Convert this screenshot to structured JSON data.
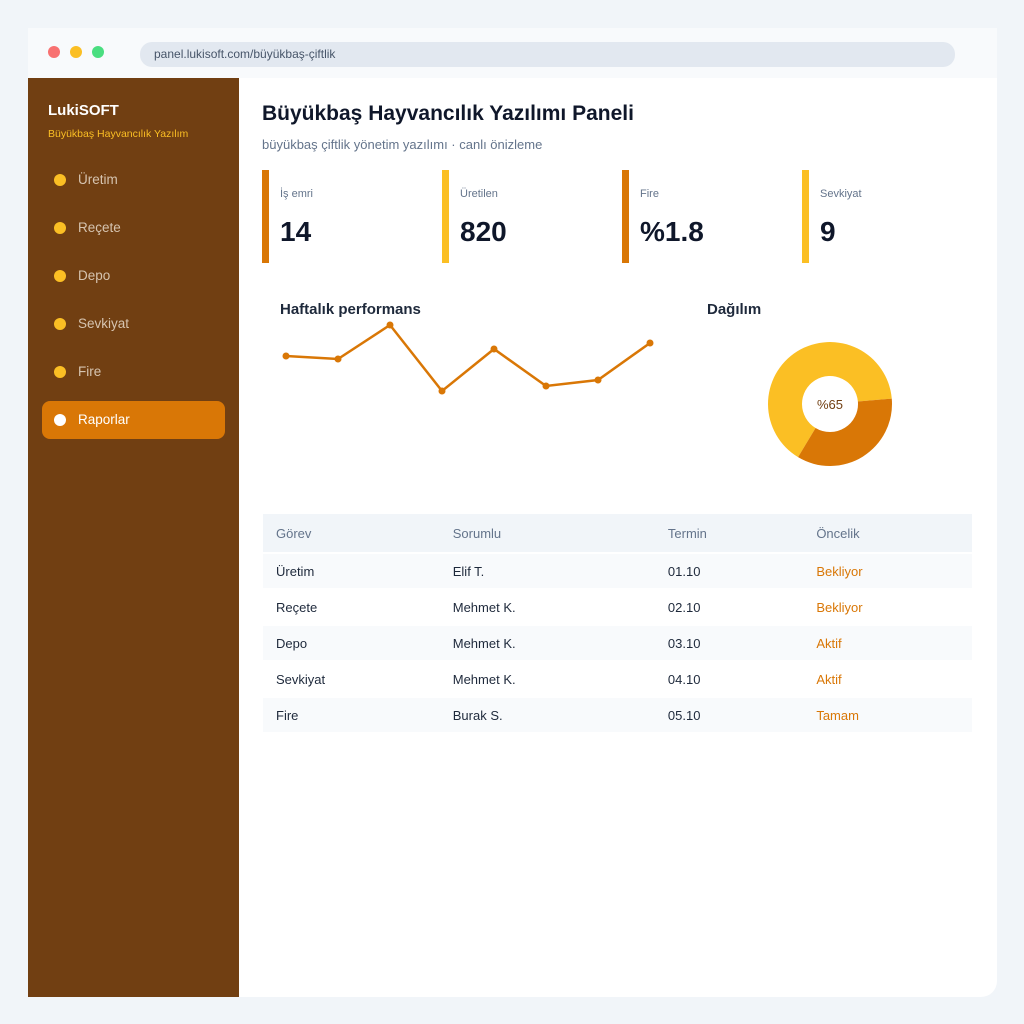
{
  "browser": {
    "url": "panel.lukisoft.com/büyükbaş-çiftlik"
  },
  "sidebar": {
    "brand": "LukiSOFT",
    "tagline": "Büyükbaş Hayvancılık Yazılım",
    "nav": [
      "Üretim",
      "Reçete",
      "Depo",
      "Sevkiyat",
      "Fire",
      "Raporlar"
    ],
    "active": 5
  },
  "header": {
    "title": "Büyükbaş Hayvancılık Yazılımı Paneli",
    "subtitle": "büyükbaş çiftlik yönetim yazılımı · canlı önizleme"
  },
  "kpis": [
    {
      "label": "İş emri",
      "value": "14",
      "color": "#d97706"
    },
    {
      "label": "Üretilen",
      "value": "820",
      "color": "#fbbf24"
    },
    {
      "label": "Fire",
      "value": "%1.8",
      "color": "#d97706"
    },
    {
      "label": "Sevkiyat",
      "value": "9",
      "color": "#fbbf24"
    }
  ],
  "performance": {
    "type": "line",
    "title": "Haftalık performans",
    "values": [
      54,
      51,
      85,
      19,
      61,
      24,
      30,
      67
    ],
    "ylim": [
      0,
      100
    ],
    "color": "#d97706"
  },
  "distribution": {
    "type": "donut",
    "title": "Dağılım",
    "values": [
      65,
      35
    ],
    "colors": [
      "#fbbf24",
      "#d97706"
    ],
    "center_label": "%65"
  },
  "table": {
    "headers": [
      "Görev",
      "Sorumlu",
      "Termin",
      "Öncelik"
    ],
    "rows": [
      [
        "Üretim",
        "Elif T.",
        "01.10",
        "Bekliyor"
      ],
      [
        "Reçete",
        "Mehmet K.",
        "02.10",
        "Bekliyor"
      ],
      [
        "Depo",
        "Mehmet K.",
        "03.10",
        "Aktif"
      ],
      [
        "Sevkiyat",
        "Mehmet K.",
        "04.10",
        "Aktif"
      ],
      [
        "Fire",
        "Burak S.",
        "05.10",
        "Tamam"
      ]
    ]
  }
}
